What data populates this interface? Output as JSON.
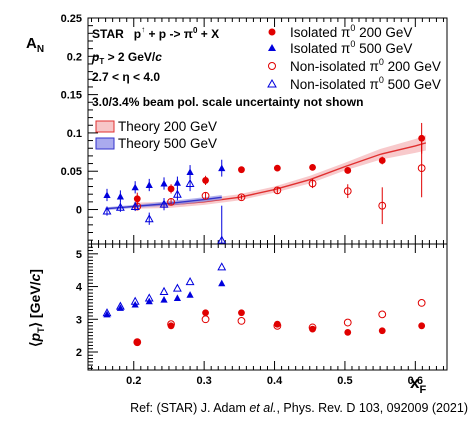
{
  "chart_data": [
    {
      "type": "scatter",
      "ylabel": "A_N",
      "xlim": [
        0.135,
        0.645
      ],
      "ylim": [
        -0.045,
        0.25
      ],
      "yticks": [
        "0",
        "0.05",
        "0.1",
        "0.15",
        "0.2",
        "0.25"
      ],
      "annotations": [
        "STAR p↑ + p -> π0 + X",
        "pT > 2 GeV/c",
        "2.7 < η < 4.0",
        "3.0/3.4% beam pol. scale uncertainty not shown"
      ],
      "series": [
        {
          "name": "Isolated π0 200 GeV",
          "marker": "filled-circle",
          "color": "#e00000",
          "x": [
            0.205,
            0.253,
            0.302,
            0.353,
            0.404,
            0.454,
            0.504,
            0.553,
            0.609
          ],
          "y": [
            0.014,
            0.027,
            0.038,
            0.052,
            0.054,
            0.055,
            0.051,
            0.064,
            0.093
          ],
          "err": [
            0.008,
            0.006,
            0.006,
            0.004,
            0.004,
            0.004,
            0.004,
            0.005,
            0.02
          ]
        },
        {
          "name": "Isolated π0 500 GeV",
          "marker": "filled-triangle",
          "color": "#0000dd",
          "x": [
            0.162,
            0.181,
            0.202,
            0.222,
            0.243,
            0.262,
            0.28,
            0.325
          ],
          "y": [
            0.019,
            0.017,
            0.029,
            0.032,
            0.034,
            0.035,
            0.049,
            0.054
          ],
          "err": [
            0.008,
            0.008,
            0.008,
            0.008,
            0.008,
            0.008,
            0.009,
            0.011
          ]
        },
        {
          "name": "Non-isolated π0 200 GeV",
          "marker": "open-circle",
          "color": "#e00000",
          "x": [
            0.205,
            0.253,
            0.302,
            0.353,
            0.404,
            0.454,
            0.504,
            0.553,
            0.609
          ],
          "y": [
            0.004,
            0.01,
            0.018,
            0.016,
            0.025,
            0.034,
            0.024,
            0.005,
            0.054
          ],
          "err": [
            0.005,
            0.004,
            0.004,
            0.003,
            0.004,
            0.006,
            0.009,
            0.024,
            0.038
          ]
        },
        {
          "name": "Non-isolated π0 500 GeV",
          "marker": "open-triangle",
          "color": "#0000dd",
          "x": [
            0.162,
            0.181,
            0.202,
            0.222,
            0.243,
            0.262,
            0.28,
            0.325
          ],
          "y": [
            -0.002,
            0.003,
            0.004,
            -0.012,
            0.007,
            0.02,
            0.034,
            -0.04
          ],
          "err": [
            0.006,
            0.006,
            0.006,
            0.008,
            0.008,
            0.008,
            0.01,
            0.045
          ]
        }
      ],
      "theory": [
        {
          "name": "Theory 200 GeV",
          "color": "#e03030",
          "band_color": "#f5b8bb",
          "x": [
            0.2,
            0.25,
            0.3,
            0.35,
            0.4,
            0.45,
            0.5,
            0.55,
            0.6,
            0.615
          ],
          "y": [
            0.005,
            0.006,
            0.01,
            0.016,
            0.026,
            0.039,
            0.056,
            0.072,
            0.083,
            0.087
          ],
          "band": [
            0.004,
            0.004,
            0.004,
            0.004,
            0.004,
            0.005,
            0.005,
            0.007,
            0.009,
            0.01
          ]
        },
        {
          "name": "Theory 500 GeV",
          "color": "#3333cc",
          "band_color": "#9999e6",
          "x": [
            0.16,
            0.2,
            0.25,
            0.3,
            0.325
          ],
          "y": [
            0.001,
            0.004,
            0.008,
            0.013,
            0.016
          ],
          "band": [
            0.002,
            0.002,
            0.003,
            0.003,
            0.003
          ]
        }
      ]
    },
    {
      "type": "scatter",
      "xlabel": "x_F",
      "ylabel": "⟨p_T⟩ [GeV/c]",
      "xlim": [
        0.135,
        0.645
      ],
      "ylim": [
        1.45,
        5.3
      ],
      "xticks": [
        "0.2",
        "0.3",
        "0.4",
        "0.5",
        "0.6"
      ],
      "yticks": [
        "2",
        "3",
        "4",
        "5"
      ],
      "series": [
        {
          "name": "Isolated π0 200 GeV",
          "marker": "filled-circle",
          "color": "#e00000",
          "x": [
            0.205,
            0.253,
            0.302,
            0.353,
            0.404,
            0.454,
            0.504,
            0.553,
            0.609
          ],
          "y": [
            2.3,
            2.8,
            3.2,
            3.2,
            2.85,
            2.7,
            2.6,
            2.65,
            2.8
          ]
        },
        {
          "name": "Isolated π0 500 GeV",
          "marker": "filled-triangle",
          "color": "#0000dd",
          "x": [
            0.162,
            0.181,
            0.202,
            0.222,
            0.243,
            0.262,
            0.28,
            0.325
          ],
          "y": [
            3.15,
            3.35,
            3.45,
            3.55,
            3.6,
            3.65,
            3.75,
            4.1
          ]
        },
        {
          "name": "Non-isolated π0 200 GeV",
          "marker": "open-circle",
          "color": "#e00000",
          "x": [
            0.205,
            0.253,
            0.302,
            0.353,
            0.404,
            0.454,
            0.504,
            0.553,
            0.609
          ],
          "y": [
            2.3,
            2.85,
            3.0,
            2.95,
            2.8,
            2.75,
            2.9,
            3.15,
            3.5
          ]
        },
        {
          "name": "Non-isolated π0 500 GeV",
          "marker": "open-triangle",
          "color": "#0000dd",
          "x": [
            0.162,
            0.181,
            0.202,
            0.222,
            0.243,
            0.262,
            0.28,
            0.325
          ],
          "y": [
            3.2,
            3.4,
            3.55,
            3.65,
            3.85,
            3.95,
            4.15,
            4.6
          ]
        }
      ]
    }
  ],
  "reference": "Ref: (STAR) J. Adam et al., Phys. Rev. D 103, 092009 (2021)"
}
